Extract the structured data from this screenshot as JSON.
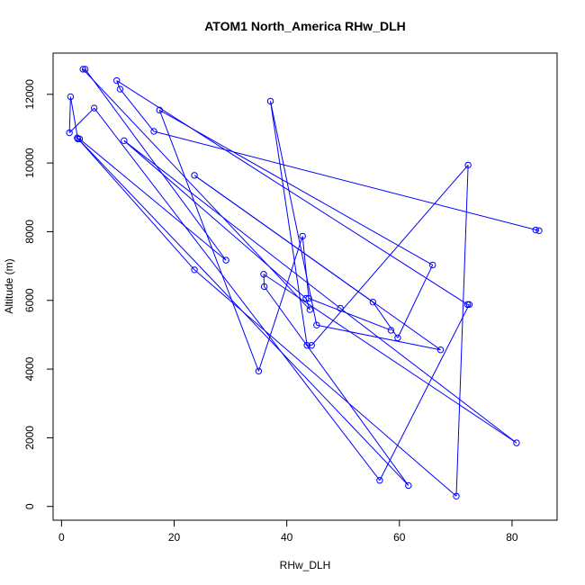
{
  "chart_data": {
    "type": "line",
    "title": "ATOM1 North_America RHw_DLH",
    "xlabel": "RHw_DLH",
    "ylabel": "Altitude (m)",
    "xlim": [
      -1.5,
      88
    ],
    "ylim": [
      -400,
      13200
    ],
    "xticks": [
      0,
      20,
      40,
      60,
      80
    ],
    "yticks": [
      0,
      2000,
      4000,
      6000,
      8000,
      10000,
      12000
    ],
    "line_color": "#0000ff",
    "markers": "open-circle",
    "grid": false,
    "series": [
      {
        "x": [
          84.2,
          84.8,
          16.4,
          10.4,
          9.8,
          72.1,
          72.4,
          56.5,
          5.8,
          1.4,
          1.6,
          2.9,
          3.2,
          29.2,
          4.2,
          3.8,
          44.1,
          43.4,
          11.1,
          49.5,
          80.8,
          35.9,
          36.0,
          61.6,
          2.8,
          23.6,
          70.1,
          72.2,
          44.4,
          43.6,
          37.1,
          45.3,
          67.3,
          23.6,
          55.3,
          59.7,
          65.9,
          17.4,
          35.0,
          42.8,
          43.9,
          58.5
        ],
        "y": [
          8050,
          8030,
          10920,
          12150,
          12400,
          5880,
          5880,
          760,
          11600,
          10880,
          11930,
          10700,
          10700,
          7170,
          12730,
          12730,
          5730,
          6060,
          10650,
          5770,
          1850,
          6760,
          6400,
          610,
          10730,
          6890,
          300,
          9940,
          4690,
          4690,
          11800,
          5280,
          4560,
          9640,
          5950,
          4910,
          7030,
          11540,
          3940,
          7870,
          6060,
          5130
        ]
      }
    ]
  }
}
